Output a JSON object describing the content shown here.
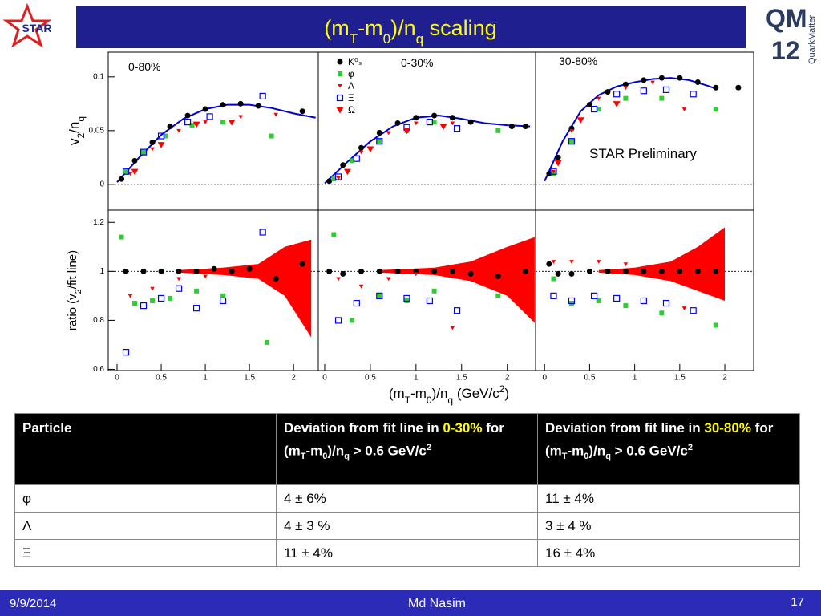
{
  "header": {
    "title": [
      "(m",
      "T",
      "-m",
      "0",
      ")/n",
      "q",
      " scaling"
    ],
    "logo_left": "STAR",
    "logo_right": [
      "QM",
      "12"
    ],
    "logo_right_side": "QuarkMatter"
  },
  "axes_labels": {
    "top_y": [
      "v",
      "2",
      "/n",
      "q"
    ],
    "bottom_y": [
      "ratio (v",
      "2",
      "/fit line)"
    ],
    "x": [
      "(m",
      "T",
      "-m",
      "0",
      ")/n",
      "q",
      " (GeV/c",
      "2",
      ")"
    ]
  },
  "chart_data": [
    {
      "type": "scatter",
      "label": "0-80%",
      "xlim": [
        -0.1,
        2.28
      ],
      "ylim": [
        -0.024,
        0.123
      ],
      "yticks": [
        0,
        0.05,
        0.1
      ],
      "ref_line": 0,
      "series": [
        {
          "style": "line",
          "color": "#0000cc",
          "x": [
            0,
            0.25,
            0.5,
            0.75,
            1.0,
            1.25,
            1.5,
            1.75,
            2.0,
            2.25
          ],
          "values": [
            0.002,
            0.025,
            0.046,
            0.061,
            0.07,
            0.074,
            0.074,
            0.071,
            0.066,
            0.062
          ]
        },
        {
          "marker": "circle",
          "color": "#000000",
          "x": [
            0.05,
            0.2,
            0.4,
            0.6,
            0.8,
            1.0,
            1.2,
            1.4,
            1.6,
            2.1
          ],
          "values": [
            0.005,
            0.022,
            0.039,
            0.054,
            0.064,
            0.07,
            0.074,
            0.075,
            0.073,
            0.068
          ]
        },
        {
          "marker": "square",
          "color": "#33cc33",
          "x": [
            0.1,
            0.3,
            0.55,
            0.85,
            1.2,
            1.75
          ],
          "values": [
            0.012,
            0.03,
            0.045,
            0.055,
            0.058,
            0.045
          ]
        },
        {
          "marker": "tri-small",
          "color": "#ff0000",
          "x": [
            0.15,
            0.4,
            0.7,
            1.0,
            1.4,
            1.8
          ],
          "values": [
            0.01,
            0.033,
            0.05,
            0.058,
            0.063,
            0.065
          ]
        },
        {
          "marker": "open-square",
          "color": "#0000ff",
          "x": [
            0.1,
            0.3,
            0.5,
            0.8,
            1.05,
            1.65
          ],
          "values": [
            0.012,
            0.03,
            0.045,
            0.058,
            0.063,
            0.082
          ]
        },
        {
          "marker": "tri",
          "color": "#ff0000",
          "x": [
            0.2,
            0.5,
            0.9,
            1.3
          ],
          "values": [
            0.012,
            0.037,
            0.056,
            0.058
          ]
        }
      ]
    },
    {
      "type": "scatter",
      "label": "0-30%",
      "legend": true,
      "xlim": [
        -0.07,
        2.31
      ],
      "ylim": [
        -0.024,
        0.123
      ],
      "ref_line": 0,
      "series": [
        {
          "style": "line",
          "color": "#0000cc",
          "x": [
            0,
            0.25,
            0.5,
            0.75,
            1.0,
            1.25,
            1.5,
            1.75,
            2.0,
            2.25
          ],
          "values": [
            0.001,
            0.021,
            0.04,
            0.054,
            0.062,
            0.064,
            0.061,
            0.057,
            0.055,
            0.054
          ]
        },
        {
          "name": "K⁰ₛ",
          "marker": "circle",
          "color": "#000000",
          "x": [
            0.05,
            0.2,
            0.4,
            0.6,
            0.8,
            1.0,
            1.2,
            1.4,
            1.6,
            2.05,
            2.2
          ],
          "values": [
            0.003,
            0.018,
            0.034,
            0.048,
            0.057,
            0.062,
            0.064,
            0.062,
            0.058,
            0.054,
            0.054
          ]
        },
        {
          "name": "φ",
          "marker": "square",
          "color": "#33cc33",
          "x": [
            0.1,
            0.3,
            0.6,
            0.9,
            1.2,
            1.9
          ],
          "values": [
            0.005,
            0.022,
            0.04,
            0.05,
            0.058,
            0.05
          ]
        },
        {
          "name": "Λ",
          "marker": "tri-small",
          "color": "#ff0000",
          "x": [
            0.15,
            0.4,
            0.7,
            1.0,
            1.4
          ],
          "values": [
            0.006,
            0.03,
            0.048,
            0.057,
            0.057
          ]
        },
        {
          "name": "Ξ",
          "marker": "open-square",
          "color": "#0000ff",
          "x": [
            0.15,
            0.35,
            0.6,
            0.9,
            1.15,
            1.45
          ],
          "values": [
            0.007,
            0.024,
            0.04,
            0.053,
            0.058,
            0.052
          ]
        },
        {
          "name": "Ω",
          "marker": "tri",
          "color": "#ff0000",
          "x": [
            0.25,
            0.5,
            0.9,
            1.3
          ],
          "values": [
            0.012,
            0.033,
            0.05,
            0.054
          ]
        }
      ]
    },
    {
      "type": "scatter",
      "label": "30-80%",
      "annotation": "STAR Preliminary",
      "xlim": [
        -0.1,
        2.32
      ],
      "ylim": [
        -0.024,
        0.123
      ],
      "ref_line": 0,
      "series": [
        {
          "style": "line",
          "color": "#0000cc",
          "x": [
            0,
            0.2,
            0.4,
            0.6,
            0.8,
            1.0,
            1.2,
            1.4,
            1.6,
            1.8,
            1.9
          ],
          "values": [
            0.003,
            0.04,
            0.068,
            0.083,
            0.091,
            0.095,
            0.098,
            0.099,
            0.097,
            0.092,
            0.089
          ]
        },
        {
          "marker": "circle",
          "color": "#000000",
          "x": [
            0.05,
            0.15,
            0.3,
            0.5,
            0.7,
            0.9,
            1.1,
            1.3,
            1.5,
            1.7,
            1.9,
            2.15
          ],
          "values": [
            0.01,
            0.025,
            0.052,
            0.074,
            0.086,
            0.093,
            0.097,
            0.099,
            0.099,
            0.095,
            0.09,
            0.09
          ]
        },
        {
          "marker": "square",
          "color": "#33cc33",
          "x": [
            0.1,
            0.3,
            0.6,
            0.9,
            1.3,
            1.9
          ],
          "values": [
            0.01,
            0.04,
            0.07,
            0.08,
            0.08,
            0.07
          ]
        },
        {
          "marker": "tri-small",
          "color": "#ff0000",
          "x": [
            0.1,
            0.3,
            0.6,
            0.9,
            1.2,
            1.55
          ],
          "values": [
            0.012,
            0.05,
            0.08,
            0.09,
            0.095,
            0.07
          ]
        },
        {
          "marker": "open-square",
          "color": "#0000ff",
          "x": [
            0.1,
            0.3,
            0.55,
            0.8,
            1.1,
            1.35,
            1.65
          ],
          "values": [
            0.012,
            0.04,
            0.07,
            0.084,
            0.087,
            0.088,
            0.084
          ]
        },
        {
          "marker": "tri",
          "color": "#ff0000",
          "x": [
            0.15,
            0.4,
            0.8
          ],
          "values": [
            0.02,
            0.06,
            0.075
          ]
        }
      ]
    },
    {
      "type": "scatter",
      "xlim": [
        -0.1,
        2.28
      ],
      "ylim": [
        0.595,
        1.25
      ],
      "yticks": [
        0.6,
        0.8,
        1,
        1.2
      ],
      "xticks": [
        0,
        0.5,
        1,
        1.5,
        2
      ],
      "ref_line": 1,
      "band": {
        "color": "#ff0000",
        "x": [
          0.7,
          1.2,
          1.6,
          1.9,
          2.2
        ],
        "lower": [
          0.995,
          0.985,
          0.97,
          0.9,
          0.73
        ],
        "upper": [
          1.005,
          1.015,
          1.03,
          1.1,
          1.13
        ]
      },
      "series": [
        {
          "marker": "circle",
          "color": "#000000",
          "x": [
            0.1,
            0.3,
            0.5,
            0.7,
            0.9,
            1.1,
            1.3,
            1.5,
            1.8,
            2.1
          ],
          "values": [
            1.0,
            1.0,
            1.0,
            1.0,
            1.0,
            1.01,
            1.0,
            1.01,
            0.97,
            1.03
          ]
        },
        {
          "marker": "square",
          "color": "#33cc33",
          "x": [
            0.05,
            0.2,
            0.4,
            0.6,
            0.9,
            1.2,
            1.7
          ],
          "values": [
            1.14,
            0.87,
            0.88,
            0.89,
            0.92,
            0.9,
            0.71
          ]
        },
        {
          "marker": "tri-small",
          "color": "#ff0000",
          "x": [
            0.15,
            0.4,
            0.7,
            1.0,
            1.4,
            1.8
          ],
          "values": [
            0.9,
            0.93,
            0.97,
            0.98,
            0.99,
            1.0
          ]
        },
        {
          "marker": "open-square",
          "color": "#0000ff",
          "x": [
            0.1,
            0.3,
            0.5,
            0.7,
            0.9,
            1.2,
            1.65
          ],
          "values": [
            0.67,
            0.86,
            0.89,
            0.93,
            0.85,
            0.88,
            1.16
          ]
        }
      ]
    },
    {
      "type": "scatter",
      "xlim": [
        -0.07,
        2.31
      ],
      "ylim": [
        0.595,
        1.25
      ],
      "xticks": [
        0,
        0.5,
        1,
        1.5,
        2
      ],
      "ref_line": 1,
      "band": {
        "color": "#ff0000",
        "x": [
          0.6,
          1.2,
          1.6,
          2.0,
          2.3
        ],
        "lower": [
          0.995,
          0.985,
          0.96,
          0.9,
          0.79
        ],
        "upper": [
          1.005,
          1.015,
          1.04,
          1.1,
          1.14
        ]
      },
      "series": [
        {
          "marker": "circle",
          "color": "#000000",
          "x": [
            0.05,
            0.2,
            0.4,
            0.6,
            0.8,
            1.0,
            1.2,
            1.4,
            1.6,
            1.9,
            2.2
          ],
          "values": [
            1.0,
            0.99,
            1.0,
            1.0,
            1.0,
            1.0,
            1.0,
            1.0,
            0.99,
            0.98,
            1.0
          ]
        },
        {
          "marker": "square",
          "color": "#33cc33",
          "x": [
            0.1,
            0.3,
            0.6,
            0.9,
            1.2,
            1.9
          ],
          "values": [
            1.15,
            0.8,
            0.9,
            0.88,
            0.92,
            0.9
          ]
        },
        {
          "marker": "tri-small",
          "color": "#ff0000",
          "x": [
            0.15,
            0.4,
            0.7,
            1.0,
            1.4
          ],
          "values": [
            0.97,
            0.94,
            0.97,
            0.99,
            0.77
          ]
        },
        {
          "marker": "open-square",
          "color": "#0000ff",
          "x": [
            0.15,
            0.35,
            0.6,
            0.9,
            1.15,
            1.45
          ],
          "values": [
            0.8,
            0.87,
            0.9,
            0.89,
            0.88,
            0.84
          ]
        }
      ]
    },
    {
      "type": "scatter",
      "xlim": [
        -0.1,
        2.32
      ],
      "ylim": [
        0.595,
        1.25
      ],
      "xticks": [
        0,
        0.5,
        1,
        1.5,
        2
      ],
      "ref_line": 1,
      "band": {
        "color": "#ff0000",
        "x": [
          0.6,
          1.0,
          1.4,
          1.7,
          2.0
        ],
        "lower": [
          0.995,
          0.985,
          0.96,
          0.92,
          0.88
        ],
        "upper": [
          1.005,
          1.015,
          1.04,
          1.1,
          1.18
        ]
      },
      "series": [
        {
          "marker": "circle",
          "color": "#000000",
          "x": [
            0.05,
            0.15,
            0.3,
            0.5,
            0.7,
            0.9,
            1.1,
            1.3,
            1.5,
            1.7,
            1.9
          ],
          "values": [
            1.03,
            0.99,
            0.99,
            1.0,
            1.0,
            1.0,
            1.0,
            1.0,
            1.0,
            1.0,
            1.0
          ]
        },
        {
          "marker": "square",
          "color": "#33cc33",
          "x": [
            0.1,
            0.3,
            0.6,
            0.9,
            1.3,
            1.9
          ],
          "values": [
            0.97,
            0.87,
            0.88,
            0.86,
            0.83,
            0.78
          ]
        },
        {
          "marker": "tri-small",
          "color": "#ff0000",
          "x": [
            0.1,
            0.3,
            0.6,
            0.9,
            1.2,
            1.55
          ],
          "values": [
            1.04,
            1.04,
            1.04,
            1.03,
            1.02,
            0.85
          ]
        },
        {
          "marker": "open-square",
          "color": "#0000ff",
          "x": [
            0.1,
            0.3,
            0.55,
            0.8,
            1.1,
            1.35,
            1.65
          ],
          "values": [
            0.9,
            0.88,
            0.9,
            0.89,
            0.88,
            0.87,
            0.84
          ]
        }
      ]
    }
  ],
  "table": {
    "header": [
      [
        "Particle"
      ],
      [
        "Deviation from fit line in ",
        "0-30%",
        " for (m",
        "T",
        "-m",
        "0",
        ")/n",
        "q",
        " > 0.6 GeV/c",
        "2"
      ],
      [
        "Deviation from fit line in ",
        "30-80%",
        " for (m",
        "T",
        "-m",
        "0",
        ")/n",
        "q",
        " > 0.6 GeV/c",
        "2"
      ]
    ],
    "rows": [
      [
        "φ",
        "4 ± 6%",
        "11 ± 4%"
      ],
      [
        "Λ",
        "4 ± 3 %",
        "3 ± 4 %"
      ],
      [
        "Ξ",
        "11 ± 4%",
        "16 ± 4%"
      ]
    ]
  },
  "footer": {
    "date": "9/9/2014",
    "author": "Md Nasim",
    "page": "17"
  }
}
